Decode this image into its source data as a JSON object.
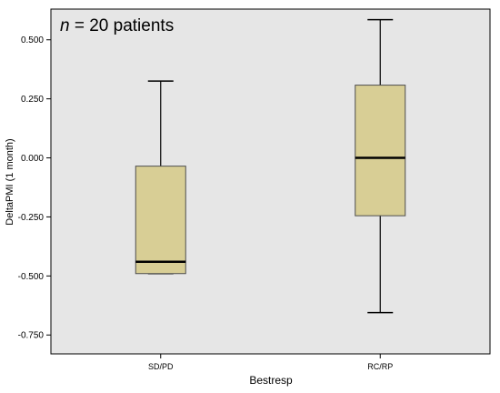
{
  "annotation": {
    "variable": "n",
    "text": " = 20 patients"
  },
  "colors": {
    "plot_background": "#e6e6e6",
    "box_fill": "#d8ce95",
    "box_stroke": "#4d4d4d",
    "median": "#000000",
    "whisker": "#000000"
  },
  "chart_data": {
    "type": "box",
    "title": "",
    "xlabel": "Bestresp",
    "ylabel": "DeltaPMI (1 month)",
    "ylim": [
      -0.83,
      0.63
    ],
    "yticks": [
      -0.75,
      -0.5,
      -0.25,
      0.0,
      0.25,
      0.5
    ],
    "ytick_labels": [
      "-0.750",
      "-0.500",
      "-0.250",
      "0.000",
      "0.250",
      "0.500"
    ],
    "grid": false,
    "categories": [
      "SD/PD",
      "RC/RP"
    ],
    "boxes": [
      {
        "category": "SD/PD",
        "whisker_low": -0.49,
        "q1": -0.49,
        "median": -0.44,
        "q3": -0.035,
        "whisker_high": 0.325
      },
      {
        "category": "RC/RP",
        "whisker_low": -0.655,
        "q1": -0.245,
        "median": 0.0,
        "q3": 0.308,
        "whisker_high": 0.585
      }
    ]
  }
}
